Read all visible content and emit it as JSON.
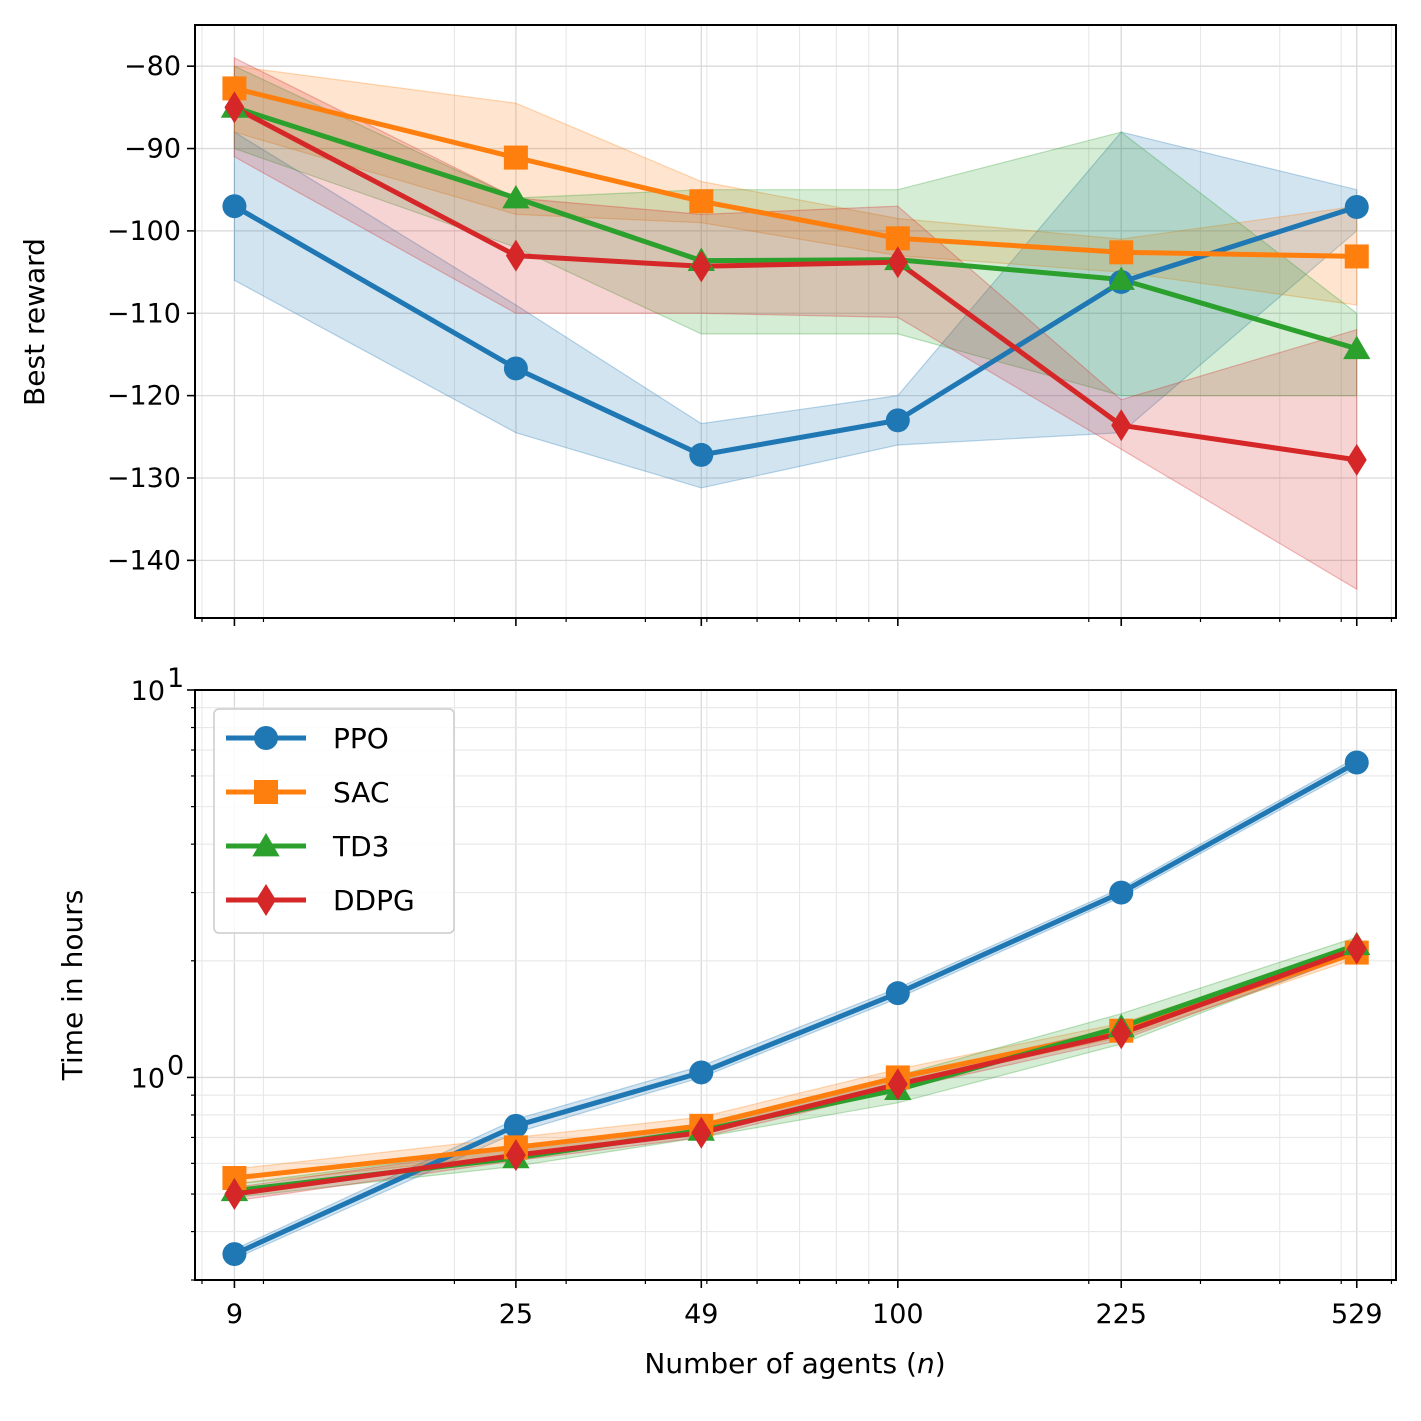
{
  "chart_data": [
    {
      "type": "line",
      "panel": "top",
      "ylabel": "Best reward",
      "xscale": "log",
      "yscale": "linear",
      "xlim": [
        7.8,
        610
      ],
      "ylim": [
        -147,
        -75
      ],
      "yticks": [
        -80,
        -90,
        -100,
        -110,
        -120,
        -130,
        -140
      ],
      "ytick_labels": [
        "−80",
        "−90",
        "−100",
        "−110",
        "−120",
        "−130",
        "−140"
      ],
      "x": [
        9,
        25,
        49,
        100,
        225,
        529
      ],
      "grid": true,
      "series": [
        {
          "name": "PPO",
          "color": "#1f77b4",
          "marker": "circle",
          "values": [
            -97,
            -116.7,
            -127.2,
            -123,
            -106.2,
            -97.1
          ],
          "lower": [
            -106,
            -124.5,
            -131.2,
            -126,
            -124.5,
            -100
          ],
          "upper": [
            -88,
            -109,
            -123.4,
            -120,
            -88,
            -95
          ]
        },
        {
          "name": "SAC",
          "color": "#ff7f0e",
          "marker": "square",
          "values": [
            -82.7,
            -91.1,
            -96.4,
            -100.9,
            -102.6,
            -103.1
          ],
          "lower": [
            -88,
            -98,
            -99,
            -103,
            -105,
            -109
          ],
          "upper": [
            -80,
            -84.5,
            -94,
            -98.5,
            -101,
            -97
          ]
        },
        {
          "name": "TD3",
          "color": "#2ca02c",
          "marker": "triangle",
          "values": [
            -85,
            -96,
            -103.6,
            -103.5,
            -105.9,
            -114.3
          ],
          "lower": [
            -90,
            -102,
            -112.5,
            -112.5,
            -120,
            -120
          ],
          "upper": [
            -80,
            -96,
            -95,
            -95,
            -88,
            -110
          ]
        },
        {
          "name": "DDPG",
          "color": "#d62728",
          "marker": "diamond",
          "values": [
            -85,
            -103,
            -104.3,
            -103.8,
            -123.6,
            -127.8
          ],
          "lower": [
            -91,
            -110,
            -110,
            -110.5,
            -126.5,
            -143.5
          ],
          "upper": [
            -79,
            -96,
            -98,
            -97,
            -120.5,
            -112
          ]
        }
      ]
    },
    {
      "type": "line",
      "panel": "bottom",
      "xlabel": "Number of agents (n)",
      "xlabel_text": "Number of agents (",
      "xlabel_var": "n",
      "xlabel_close": ")",
      "ylabel": "Time in hours",
      "xscale": "log",
      "yscale": "log",
      "xlim": [
        7.8,
        610
      ],
      "ylim": [
        0.3,
        10
      ],
      "ytick_labels": [
        {
          "base": "10",
          "exp": "1",
          "value": 10
        },
        {
          "base": "10",
          "exp": "0",
          "value": 1
        }
      ],
      "x": [
        9,
        25,
        49,
        100,
        225,
        529
      ],
      "xtick_labels": [
        "9",
        "25",
        "49",
        "100",
        "225",
        "529"
      ],
      "grid": true,
      "legend": {
        "position": "upper-left",
        "entries": [
          "PPO",
          "SAC",
          "TD3",
          "DDPG"
        ]
      },
      "series": [
        {
          "name": "PPO",
          "color": "#1f77b4",
          "marker": "circle",
          "values": [
            0.35,
            0.75,
            1.03,
            1.65,
            3.0,
            6.5
          ],
          "lower": [
            0.34,
            0.72,
            1.0,
            1.6,
            2.92,
            6.3
          ],
          "upper": [
            0.36,
            0.78,
            1.07,
            1.7,
            3.08,
            6.7
          ]
        },
        {
          "name": "SAC",
          "color": "#ff7f0e",
          "marker": "square",
          "values": [
            0.55,
            0.66,
            0.75,
            1.0,
            1.32,
            2.1
          ],
          "lower": [
            0.53,
            0.63,
            0.72,
            0.96,
            1.27,
            2.03
          ],
          "upper": [
            0.58,
            0.7,
            0.79,
            1.05,
            1.38,
            2.17
          ]
        },
        {
          "name": "TD3",
          "color": "#2ca02c",
          "marker": "triangle",
          "values": [
            0.51,
            0.62,
            0.73,
            0.93,
            1.35,
            2.2
          ],
          "lower": [
            0.49,
            0.59,
            0.7,
            0.86,
            1.22,
            2.1
          ],
          "upper": [
            0.53,
            0.66,
            0.76,
            1.01,
            1.46,
            2.3
          ]
        },
        {
          "name": "DDPG",
          "color": "#d62728",
          "marker": "diamond",
          "values": [
            0.5,
            0.63,
            0.72,
            0.96,
            1.3,
            2.15
          ],
          "lower": [
            0.48,
            0.61,
            0.7,
            0.93,
            1.25,
            2.08
          ],
          "upper": [
            0.52,
            0.66,
            0.75,
            1.0,
            1.35,
            2.22
          ]
        }
      ]
    }
  ]
}
